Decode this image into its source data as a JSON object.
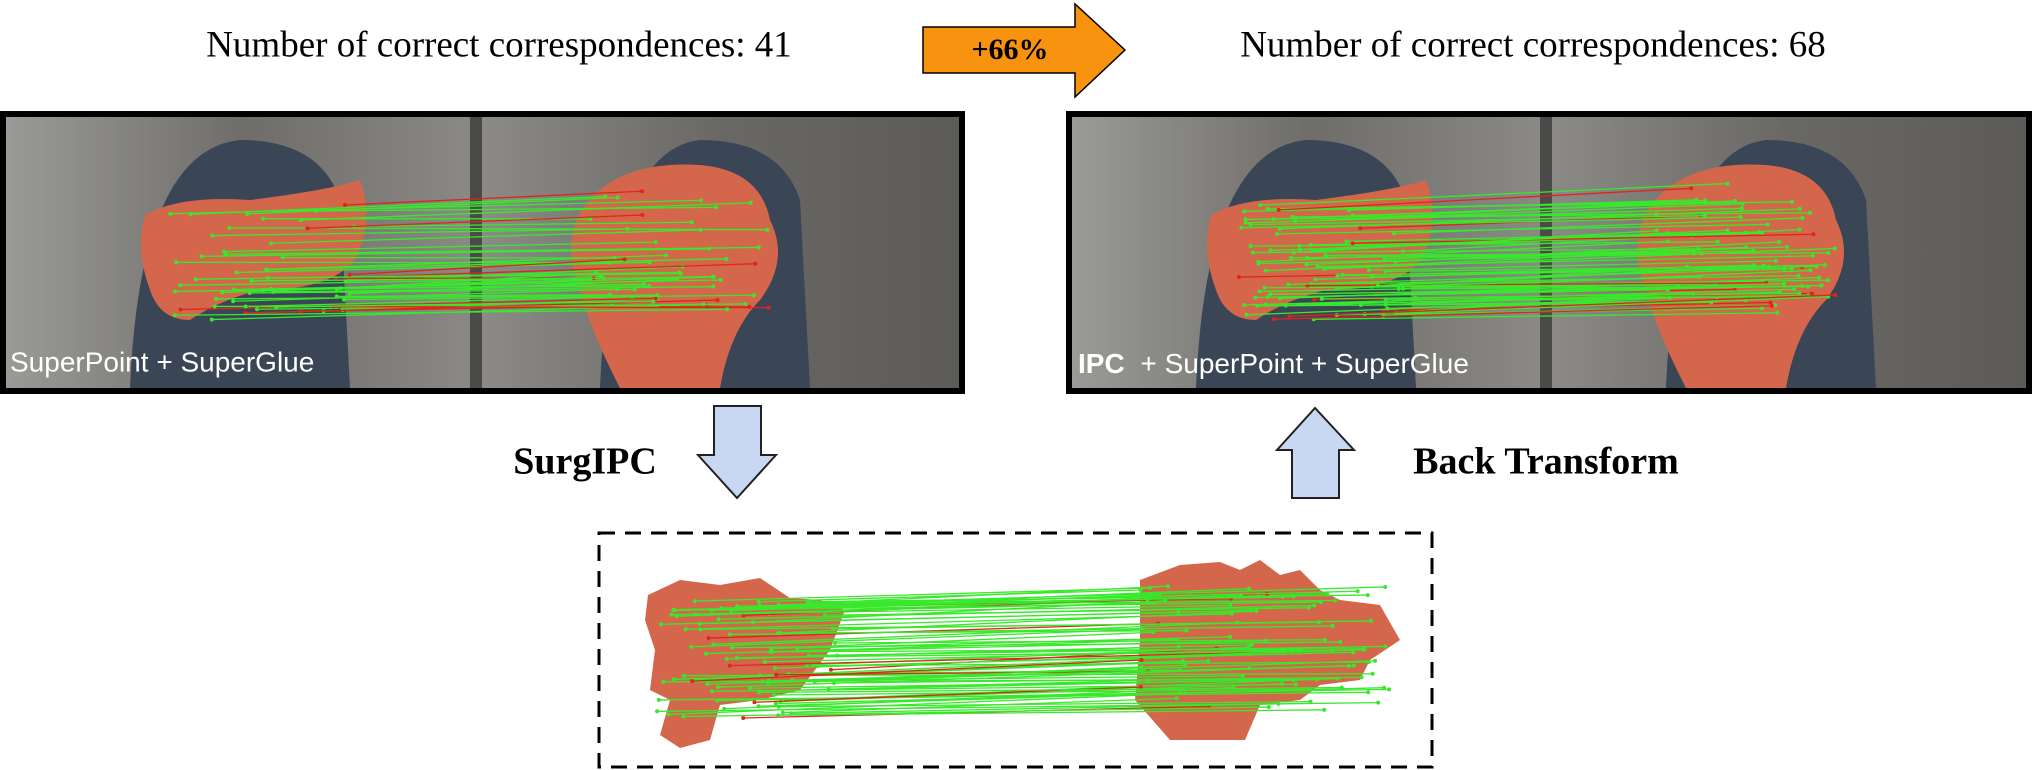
{
  "left": {
    "caption": "Number of correct correspondences: 41",
    "label": "SuperPoint + SuperGlue"
  },
  "improvement": "+66%",
  "right": {
    "caption": "Number of correct correspondences: 68",
    "label_bold": "IPC",
    "label_rest": "+ SuperPoint + SuperGlue"
  },
  "steps": {
    "forward": "SurgIPC",
    "backward": "Back Transform"
  }
}
